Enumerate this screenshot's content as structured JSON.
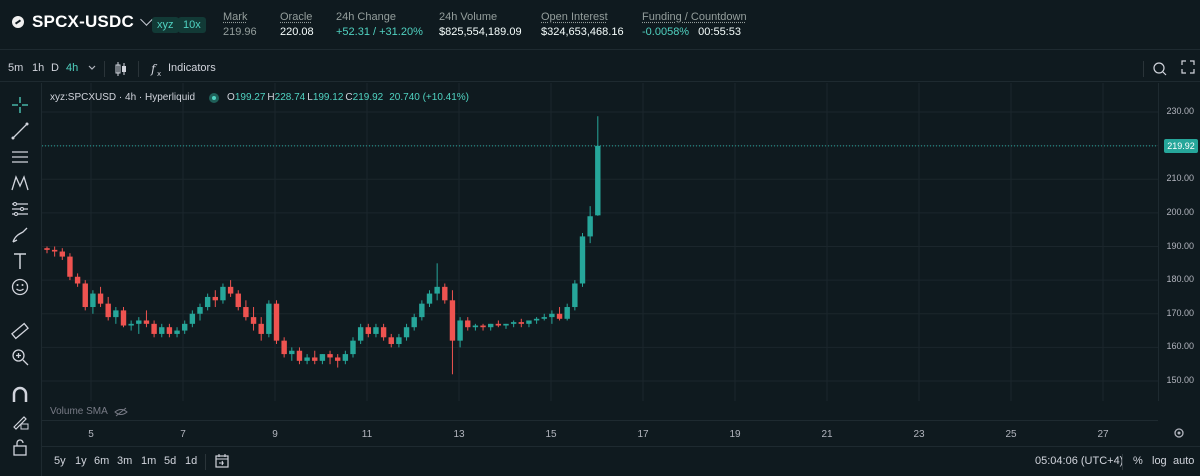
{
  "header": {
    "symbol": "SPCX-USDC",
    "badge_dex": "xyz",
    "badge_leverage": "10x",
    "stats": [
      {
        "label": "Mark",
        "value": "219.96",
        "tone": "teal"
      },
      {
        "label": "Oracle",
        "value": "220.08",
        "tone": "white"
      },
      {
        "label": "24h Change",
        "value": "+52.31 / +31.20%",
        "tone": "teal"
      },
      {
        "label": "24h Volume",
        "value": "$825,554,189.09",
        "tone": "white"
      },
      {
        "label": "Open Interest",
        "value": "$324,653,468.16",
        "tone": "white"
      },
      {
        "label": "Funding / Countdown",
        "value": "-0.0058%",
        "value2": "00:55:53",
        "tone": "teal"
      }
    ]
  },
  "toolbar": {
    "intervals": [
      "5m",
      "1h",
      "D",
      "4h"
    ],
    "active_interval": "4h",
    "indicators_label": "Indicators"
  },
  "legend": {
    "title": "xyz:SPCXUSD · 4h · Hyperliquid",
    "o_label": "O",
    "o": "199.27",
    "h_label": "H",
    "h": "228.74",
    "l_label": "L",
    "l": "199.12",
    "c_label": "C",
    "c": "219.92",
    "change": "20.740 (+10.41%)",
    "volume_sma": "Volume SMA"
  },
  "axis": {
    "y_ticks": [
      "230.00",
      "220.00",
      "210.00",
      "200.00",
      "190.00",
      "180.00",
      "170.00",
      "160.00",
      "150.00"
    ],
    "last_price": "219.92",
    "x_ticks": [
      "5",
      "7",
      "9",
      "11",
      "13",
      "15",
      "17",
      "19",
      "21",
      "23",
      "25",
      "27"
    ]
  },
  "bottom": {
    "ranges": [
      "5y",
      "1y",
      "6m",
      "3m",
      "1m",
      "5d",
      "1d"
    ],
    "time": "05:04:06 (UTC+4)",
    "percent": "%",
    "log": "log",
    "auto": "auto"
  },
  "chart_data": {
    "type": "candlestick",
    "interval": "4h",
    "ylim": [
      145,
      232
    ],
    "colors": {
      "up": "#26a69a",
      "down": "#ef5350"
    },
    "candles": [
      [
        189.5,
        190,
        188,
        189
      ],
      [
        189,
        190,
        187,
        188.5
      ],
      [
        188.5,
        189.5,
        186,
        187
      ],
      [
        187,
        188,
        180,
        181
      ],
      [
        181,
        182,
        178,
        179
      ],
      [
        179,
        180,
        171,
        172
      ],
      [
        172,
        177,
        170,
        176
      ],
      [
        176,
        178,
        172,
        173
      ],
      [
        173,
        175,
        168,
        169
      ],
      [
        169,
        172,
        167,
        171
      ],
      [
        171,
        172,
        166,
        166.5
      ],
      [
        166.5,
        168,
        165,
        167
      ],
      [
        167,
        169,
        164,
        168
      ],
      [
        168,
        171,
        166,
        167
      ],
      [
        167,
        168,
        163,
        164
      ],
      [
        164,
        167,
        163,
        166
      ],
      [
        166,
        167,
        163,
        164
      ],
      [
        164,
        166,
        163,
        165
      ],
      [
        165,
        168,
        164,
        167
      ],
      [
        167,
        171,
        166,
        170
      ],
      [
        170,
        173,
        168,
        172
      ],
      [
        172,
        176,
        171,
        175
      ],
      [
        175,
        177,
        172,
        174
      ],
      [
        174,
        179,
        173,
        178
      ],
      [
        178,
        180,
        175,
        176
      ],
      [
        176,
        177,
        171,
        172
      ],
      [
        172,
        174,
        168,
        169
      ],
      [
        169,
        172,
        165,
        167
      ],
      [
        167,
        169,
        162,
        164
      ],
      [
        164,
        174,
        163,
        173
      ],
      [
        173,
        174,
        161,
        162
      ],
      [
        162,
        163,
        157,
        158
      ],
      [
        158,
        160,
        156,
        159
      ],
      [
        159,
        160,
        155,
        156
      ],
      [
        156,
        158,
        155,
        157
      ],
      [
        157,
        159,
        155,
        156
      ],
      [
        156,
        158,
        155,
        158
      ],
      [
        158,
        159,
        155,
        157
      ],
      [
        157,
        158,
        154,
        156
      ],
      [
        156,
        159,
        155,
        158
      ],
      [
        158,
        163,
        157,
        162
      ],
      [
        162,
        167,
        161,
        166
      ],
      [
        166,
        167,
        163,
        164
      ],
      [
        164,
        167,
        163,
        166
      ],
      [
        166,
        167,
        162,
        163
      ],
      [
        163,
        164,
        160,
        161
      ],
      [
        161,
        164,
        160,
        163
      ],
      [
        163,
        167,
        162,
        166
      ],
      [
        166,
        170,
        165,
        169
      ],
      [
        169,
        174,
        168,
        173
      ],
      [
        173,
        177,
        172,
        176
      ],
      [
        176,
        185,
        174,
        178
      ],
      [
        178,
        179,
        173,
        174
      ],
      [
        174,
        177,
        152,
        162
      ],
      [
        162,
        169,
        160,
        168
      ],
      [
        168,
        169,
        165,
        166
      ],
      [
        166,
        167,
        165,
        166.5
      ],
      [
        166.5,
        167,
        165,
        166
      ],
      [
        166,
        167,
        165,
        167
      ],
      [
        167,
        168,
        166,
        166.5
      ],
      [
        166.5,
        167,
        165.5,
        167
      ],
      [
        167,
        168,
        166,
        167.5
      ],
      [
        167.5,
        168.5,
        166,
        167
      ],
      [
        167,
        168,
        166,
        168
      ],
      [
        168,
        169,
        167,
        168.5
      ],
      [
        168.5,
        170,
        168,
        169
      ],
      [
        169,
        171,
        167,
        170
      ],
      [
        170,
        172,
        168,
        168.5
      ],
      [
        168.5,
        173,
        168,
        172
      ],
      [
        172,
        180,
        171,
        179
      ],
      [
        179,
        194,
        178,
        193
      ],
      [
        193,
        202,
        191,
        199
      ],
      [
        199.27,
        228.74,
        199.12,
        219.92
      ]
    ]
  }
}
